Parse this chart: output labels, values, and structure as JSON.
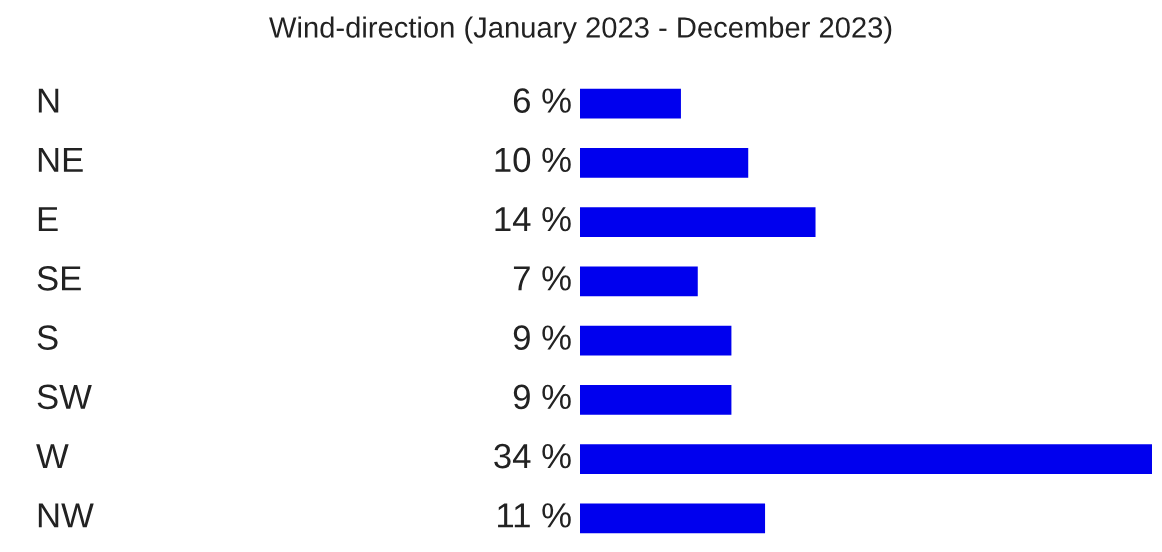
{
  "chart_data": {
    "type": "bar",
    "orientation": "horizontal",
    "title": "Wind-direction (January 2023 - December 2023)",
    "categories": [
      "N",
      "NE",
      "E",
      "SE",
      "S",
      "SW",
      "W",
      "NW"
    ],
    "values": [
      6,
      10,
      14,
      7,
      9,
      9,
      34,
      11
    ],
    "value_labels": [
      "6 %",
      "10 %",
      "14 %",
      "7 %",
      "9 %",
      "9 %",
      "34 %",
      "11 %"
    ],
    "color": "#0000ee",
    "xlim": [
      0,
      34
    ]
  }
}
